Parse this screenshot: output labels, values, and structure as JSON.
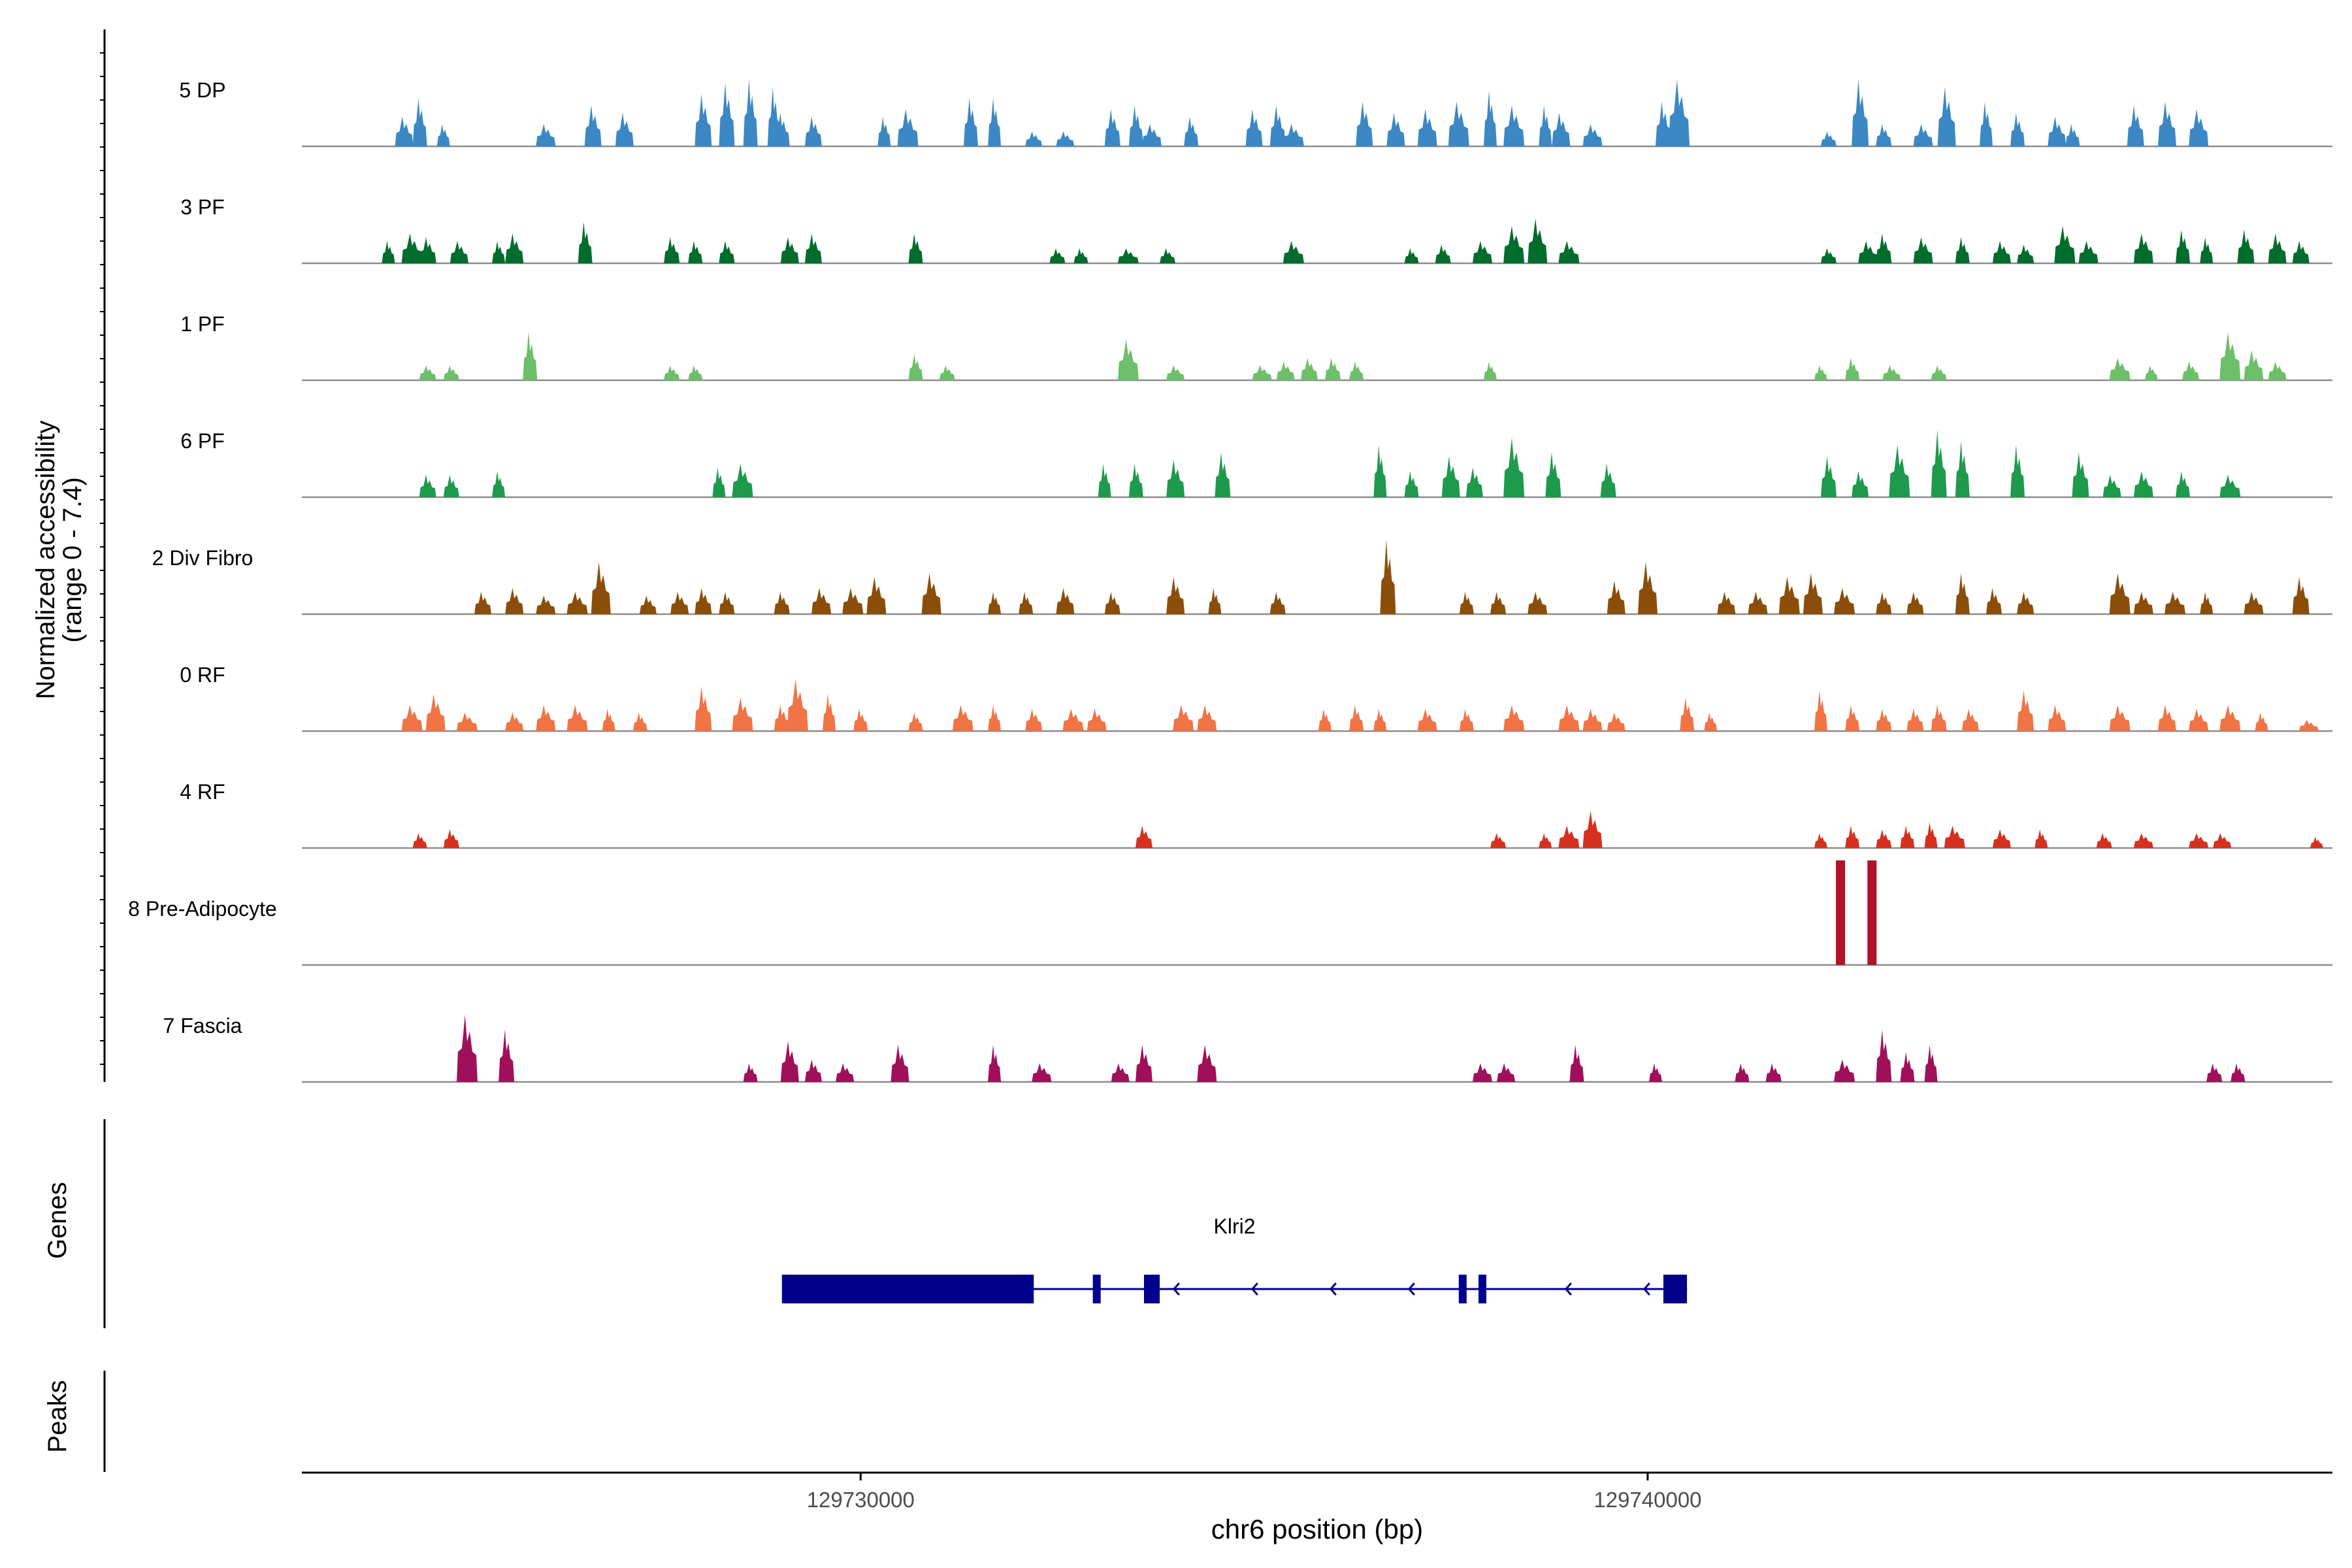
{
  "chart_data": {
    "type": "coverage-tracks",
    "title": "",
    "y_axis_label_line1": "Normalized accessibility",
    "y_axis_label_line2": "(range 0 - 7.4)",
    "y_range": [
      0,
      7.4
    ],
    "x_axis_label": "chr6 position (bp)",
    "x_range": [
      129722900,
      129748700
    ],
    "x_ticks": [
      {
        "value": 129730000,
        "label": "129730000"
      },
      {
        "value": 129740000,
        "label": "129740000"
      }
    ],
    "tracks": [
      {
        "name": "5 DP",
        "color": "#3b88c4",
        "peaks": [
          [
            129724200,
            4.0
          ],
          [
            129724400,
            6.5
          ],
          [
            129724700,
            3.0
          ],
          [
            129726000,
            3.0
          ],
          [
            129726600,
            5.5
          ],
          [
            129727000,
            4.5
          ],
          [
            129728000,
            7.0
          ],
          [
            129728300,
            8.5
          ],
          [
            129728600,
            9.0
          ],
          [
            129728900,
            8.0
          ],
          [
            129729000,
            4.5
          ],
          [
            129729400,
            4.0
          ],
          [
            129730300,
            4.0
          ],
          [
            129730600,
            5.0
          ],
          [
            129731400,
            6.5
          ],
          [
            129731700,
            6.5
          ],
          [
            129732200,
            2.0
          ],
          [
            129732600,
            2.0
          ],
          [
            129733200,
            5.0
          ],
          [
            129733500,
            5.5
          ],
          [
            129733700,
            3.0
          ],
          [
            129734200,
            4.0
          ],
          [
            129735000,
            5.0
          ],
          [
            129735300,
            5.5
          ],
          [
            129735500,
            3.0
          ],
          [
            129736400,
            6.0
          ],
          [
            129736800,
            4.5
          ],
          [
            129737200,
            5.0
          ],
          [
            129737600,
            6.0
          ],
          [
            129738000,
            7.5
          ],
          [
            129738300,
            5.5
          ],
          [
            129738700,
            5.5
          ],
          [
            129738900,
            4.5
          ],
          [
            129739300,
            3.0
          ],
          [
            129740200,
            6.0
          ],
          [
            129740400,
            9.0
          ],
          [
            129742300,
            2.0
          ],
          [
            129742700,
            9.0
          ],
          [
            129743000,
            3.0
          ],
          [
            129743500,
            3.0
          ],
          [
            129743800,
            8.0
          ],
          [
            129744300,
            6.0
          ],
          [
            129744700,
            4.5
          ],
          [
            129745200,
            4.0
          ],
          [
            129745400,
            3.0
          ],
          [
            129746200,
            5.5
          ],
          [
            129746600,
            6.0
          ],
          [
            129747000,
            5.0
          ]
        ]
      },
      {
        "name": "3 PF",
        "color": "#006d2c",
        "peaks": [
          [
            129724000,
            3.0
          ],
          [
            129724300,
            4.0
          ],
          [
            129724500,
            3.5
          ],
          [
            129724900,
            3.0
          ],
          [
            129725400,
            3.0
          ],
          [
            129725600,
            4.0
          ],
          [
            129726500,
            5.5
          ],
          [
            129727600,
            3.5
          ],
          [
            129727900,
            3.0
          ],
          [
            129728300,
            3.0
          ],
          [
            129729100,
            3.5
          ],
          [
            129729400,
            4.0
          ],
          [
            129730700,
            4.0
          ],
          [
            129732500,
            2.0
          ],
          [
            129732800,
            2.0
          ],
          [
            129733400,
            2.0
          ],
          [
            129733900,
            2.0
          ],
          [
            129735500,
            3.0
          ],
          [
            129737000,
            2.0
          ],
          [
            129737400,
            2.5
          ],
          [
            129737900,
            3.0
          ],
          [
            129738300,
            5.0
          ],
          [
            129738600,
            6.0
          ],
          [
            129739000,
            3.0
          ],
          [
            129742300,
            2.0
          ],
          [
            129742800,
            3.0
          ],
          [
            129743000,
            4.0
          ],
          [
            129743500,
            3.5
          ],
          [
            129744000,
            3.5
          ],
          [
            129744500,
            3.0
          ],
          [
            129744800,
            2.5
          ],
          [
            129745300,
            5.0
          ],
          [
            129745600,
            3.0
          ],
          [
            129746300,
            4.0
          ],
          [
            129746800,
            4.5
          ],
          [
            129747100,
            3.5
          ],
          [
            129747600,
            4.5
          ],
          [
            129748000,
            4.0
          ],
          [
            129748300,
            3.0
          ]
        ]
      },
      {
        "name": "1 PF",
        "color": "#6dbf6a",
        "peaks": [
          [
            129724500,
            2.0
          ],
          [
            129724800,
            2.0
          ],
          [
            129725800,
            6.5
          ],
          [
            129727600,
            2.0
          ],
          [
            129727900,
            2.0
          ],
          [
            129730700,
            3.5
          ],
          [
            129731100,
            2.0
          ],
          [
            129733400,
            5.5
          ],
          [
            129734000,
            2.0
          ],
          [
            129735100,
            2.0
          ],
          [
            129735400,
            2.5
          ],
          [
            129735700,
            3.0
          ],
          [
            129736000,
            3.0
          ],
          [
            129736300,
            2.5
          ],
          [
            129738000,
            2.5
          ],
          [
            129742200,
            2.0
          ],
          [
            129742600,
            3.0
          ],
          [
            129743100,
            2.0
          ],
          [
            129743700,
            2.0
          ],
          [
            129746000,
            3.0
          ],
          [
            129746400,
            2.0
          ],
          [
            129746900,
            2.5
          ],
          [
            129747400,
            6.5
          ],
          [
            129747700,
            4.0
          ],
          [
            129748000,
            2.5
          ]
        ]
      },
      {
        "name": "6 PF",
        "color": "#1e9a4c",
        "peaks": [
          [
            129724500,
            3.0
          ],
          [
            129724800,
            3.0
          ],
          [
            129725400,
            3.5
          ],
          [
            129728200,
            4.0
          ],
          [
            129728500,
            4.5
          ],
          [
            129733100,
            4.5
          ],
          [
            129733500,
            4.5
          ],
          [
            129734000,
            5.0
          ],
          [
            129734600,
            6.0
          ],
          [
            129736600,
            7.0
          ],
          [
            129737000,
            3.5
          ],
          [
            129737500,
            5.5
          ],
          [
            129737800,
            4.0
          ],
          [
            129738300,
            8.0
          ],
          [
            129738800,
            6.0
          ],
          [
            129739500,
            4.5
          ],
          [
            129742300,
            5.5
          ],
          [
            129742700,
            3.5
          ],
          [
            129743200,
            7.0
          ],
          [
            129743700,
            9.0
          ],
          [
            129744000,
            7.5
          ],
          [
            129744700,
            7.0
          ],
          [
            129745500,
            6.0
          ],
          [
            129745900,
            3.0
          ],
          [
            129746300,
            3.5
          ],
          [
            129746800,
            3.5
          ],
          [
            129747400,
            3.0
          ]
        ]
      },
      {
        "name": "2 Div Fibro",
        "color": "#8b4e0a",
        "peaks": [
          [
            129725200,
            3.0
          ],
          [
            129725600,
            3.5
          ],
          [
            129726000,
            2.5
          ],
          [
            129726400,
            3.0
          ],
          [
            129726700,
            7.0
          ],
          [
            129727300,
            2.5
          ],
          [
            129727700,
            3.0
          ],
          [
            129728000,
            3.5
          ],
          [
            129728300,
            3.0
          ],
          [
            129729000,
            3.0
          ],
          [
            129729500,
            3.5
          ],
          [
            129729900,
            3.5
          ],
          [
            129730200,
            5.0
          ],
          [
            129730900,
            5.5
          ],
          [
            129731700,
            3.0
          ],
          [
            129732100,
            3.0
          ],
          [
            129732600,
            3.5
          ],
          [
            129733200,
            3.0
          ],
          [
            129734000,
            5.0
          ],
          [
            129734500,
            3.5
          ],
          [
            129735300,
            3.0
          ],
          [
            129736700,
            10.0
          ],
          [
            129737700,
            3.0
          ],
          [
            129738100,
            3.0
          ],
          [
            129738600,
            3.0
          ],
          [
            129739600,
            4.5
          ],
          [
            129740000,
            7.0
          ],
          [
            129741000,
            3.0
          ],
          [
            129741400,
            3.0
          ],
          [
            129741800,
            5.0
          ],
          [
            129742100,
            5.5
          ],
          [
            129742500,
            3.5
          ],
          [
            129743000,
            3.0
          ],
          [
            129743400,
            3.0
          ],
          [
            129744000,
            5.5
          ],
          [
            129744400,
            3.5
          ],
          [
            129744800,
            3.0
          ],
          [
            129746000,
            5.5
          ],
          [
            129746300,
            3.0
          ],
          [
            129746700,
            3.0
          ],
          [
            129747100,
            3.0
          ],
          [
            129747700,
            3.0
          ],
          [
            129748300,
            5.0
          ]
        ]
      },
      {
        "name": "0 RF",
        "color": "#f07445",
        "peaks": [
          [
            129724300,
            3.5
          ],
          [
            129724600,
            5.0
          ],
          [
            129725000,
            2.5
          ],
          [
            129725600,
            2.5
          ],
          [
            129726000,
            3.5
          ],
          [
            129726400,
            3.5
          ],
          [
            129726800,
            3.0
          ],
          [
            129727200,
            2.5
          ],
          [
            129728000,
            6.0
          ],
          [
            129728500,
            4.5
          ],
          [
            129729000,
            3.5
          ],
          [
            129729200,
            7.0
          ],
          [
            129729600,
            5.0
          ],
          [
            129730000,
            3.0
          ],
          [
            129730700,
            2.5
          ],
          [
            129731300,
            3.5
          ],
          [
            129731700,
            3.5
          ],
          [
            129732200,
            3.0
          ],
          [
            129732700,
            3.0
          ],
          [
            129733000,
            3.0
          ],
          [
            129734100,
            3.5
          ],
          [
            129734400,
            3.5
          ],
          [
            129735900,
            3.0
          ],
          [
            129736300,
            3.5
          ],
          [
            129736600,
            3.0
          ],
          [
            129737200,
            3.0
          ],
          [
            129737700,
            3.0
          ],
          [
            129738300,
            3.5
          ],
          [
            129739000,
            3.5
          ],
          [
            129739300,
            3.0
          ],
          [
            129739600,
            2.5
          ],
          [
            129740500,
            4.5
          ],
          [
            129740800,
            2.5
          ],
          [
            129742200,
            5.5
          ],
          [
            129742600,
            3.5
          ],
          [
            129743000,
            3.0
          ],
          [
            129743400,
            3.0
          ],
          [
            129743700,
            3.5
          ],
          [
            129744100,
            3.0
          ],
          [
            129744800,
            5.5
          ],
          [
            129745200,
            3.5
          ],
          [
            129746000,
            3.5
          ],
          [
            129746600,
            3.5
          ],
          [
            129747000,
            3.0
          ],
          [
            129747400,
            3.5
          ],
          [
            129747800,
            2.5
          ],
          [
            129748400,
            1.5
          ]
        ]
      },
      {
        "name": "4 RF",
        "color": "#d7301f",
        "peaks": [
          [
            129724400,
            2.0
          ],
          [
            129724800,
            2.5
          ],
          [
            129733600,
            3.0
          ],
          [
            129738100,
            2.0
          ],
          [
            129738700,
            2.0
          ],
          [
            129739000,
            3.0
          ],
          [
            129739300,
            5.0
          ],
          [
            129742200,
            2.0
          ],
          [
            129742600,
            3.0
          ],
          [
            129743000,
            2.5
          ],
          [
            129743300,
            3.0
          ],
          [
            129743600,
            3.5
          ],
          [
            129743900,
            3.0
          ],
          [
            129744500,
            2.5
          ],
          [
            129745000,
            2.5
          ],
          [
            129745800,
            2.0
          ],
          [
            129746300,
            2.0
          ],
          [
            129747000,
            2.0
          ],
          [
            129747300,
            2.0
          ],
          [
            129748500,
            1.5
          ]
        ]
      },
      {
        "name": "8 Pre-Adipocyte",
        "color": "#b0122a",
        "bars": [
          [
            129742450,
            14.0
          ],
          [
            129742850,
            14.0
          ]
        ]
      },
      {
        "name": "7 Fascia",
        "color": "#a0105a",
        "peaks": [
          [
            129725000,
            9.0
          ],
          [
            129725500,
            7.0
          ],
          [
            129728600,
            2.5
          ],
          [
            129729100,
            5.5
          ],
          [
            129729400,
            3.0
          ],
          [
            129729800,
            2.5
          ],
          [
            129730500,
            5.0
          ],
          [
            129731700,
            5.0
          ],
          [
            129732300,
            2.5
          ],
          [
            129733300,
            2.5
          ],
          [
            129733600,
            5.0
          ],
          [
            129734400,
            5.0
          ],
          [
            129737900,
            2.5
          ],
          [
            129738200,
            2.5
          ],
          [
            129739100,
            5.0
          ],
          [
            129740100,
            2.5
          ],
          [
            129741200,
            2.5
          ],
          [
            129741600,
            2.5
          ],
          [
            129742500,
            3.0
          ],
          [
            129743000,
            7.0
          ],
          [
            129743300,
            4.0
          ],
          [
            129743600,
            5.0
          ],
          [
            129747200,
            2.5
          ],
          [
            129747500,
            2.5
          ]
        ]
      }
    ],
    "genes_label": "Genes",
    "gene": {
      "name": "Klri2",
      "start": 129729000,
      "end": 129740500,
      "strand": "-",
      "color": "#00008b",
      "exons": [
        [
          129729000,
          129732200
        ],
        [
          129732950,
          129733050
        ],
        [
          129733600,
          129733800
        ],
        [
          129737600,
          129737700
        ],
        [
          129737850,
          129737950
        ],
        [
          129740200,
          129740500
        ]
      ]
    },
    "peaks_label": "Peaks"
  }
}
